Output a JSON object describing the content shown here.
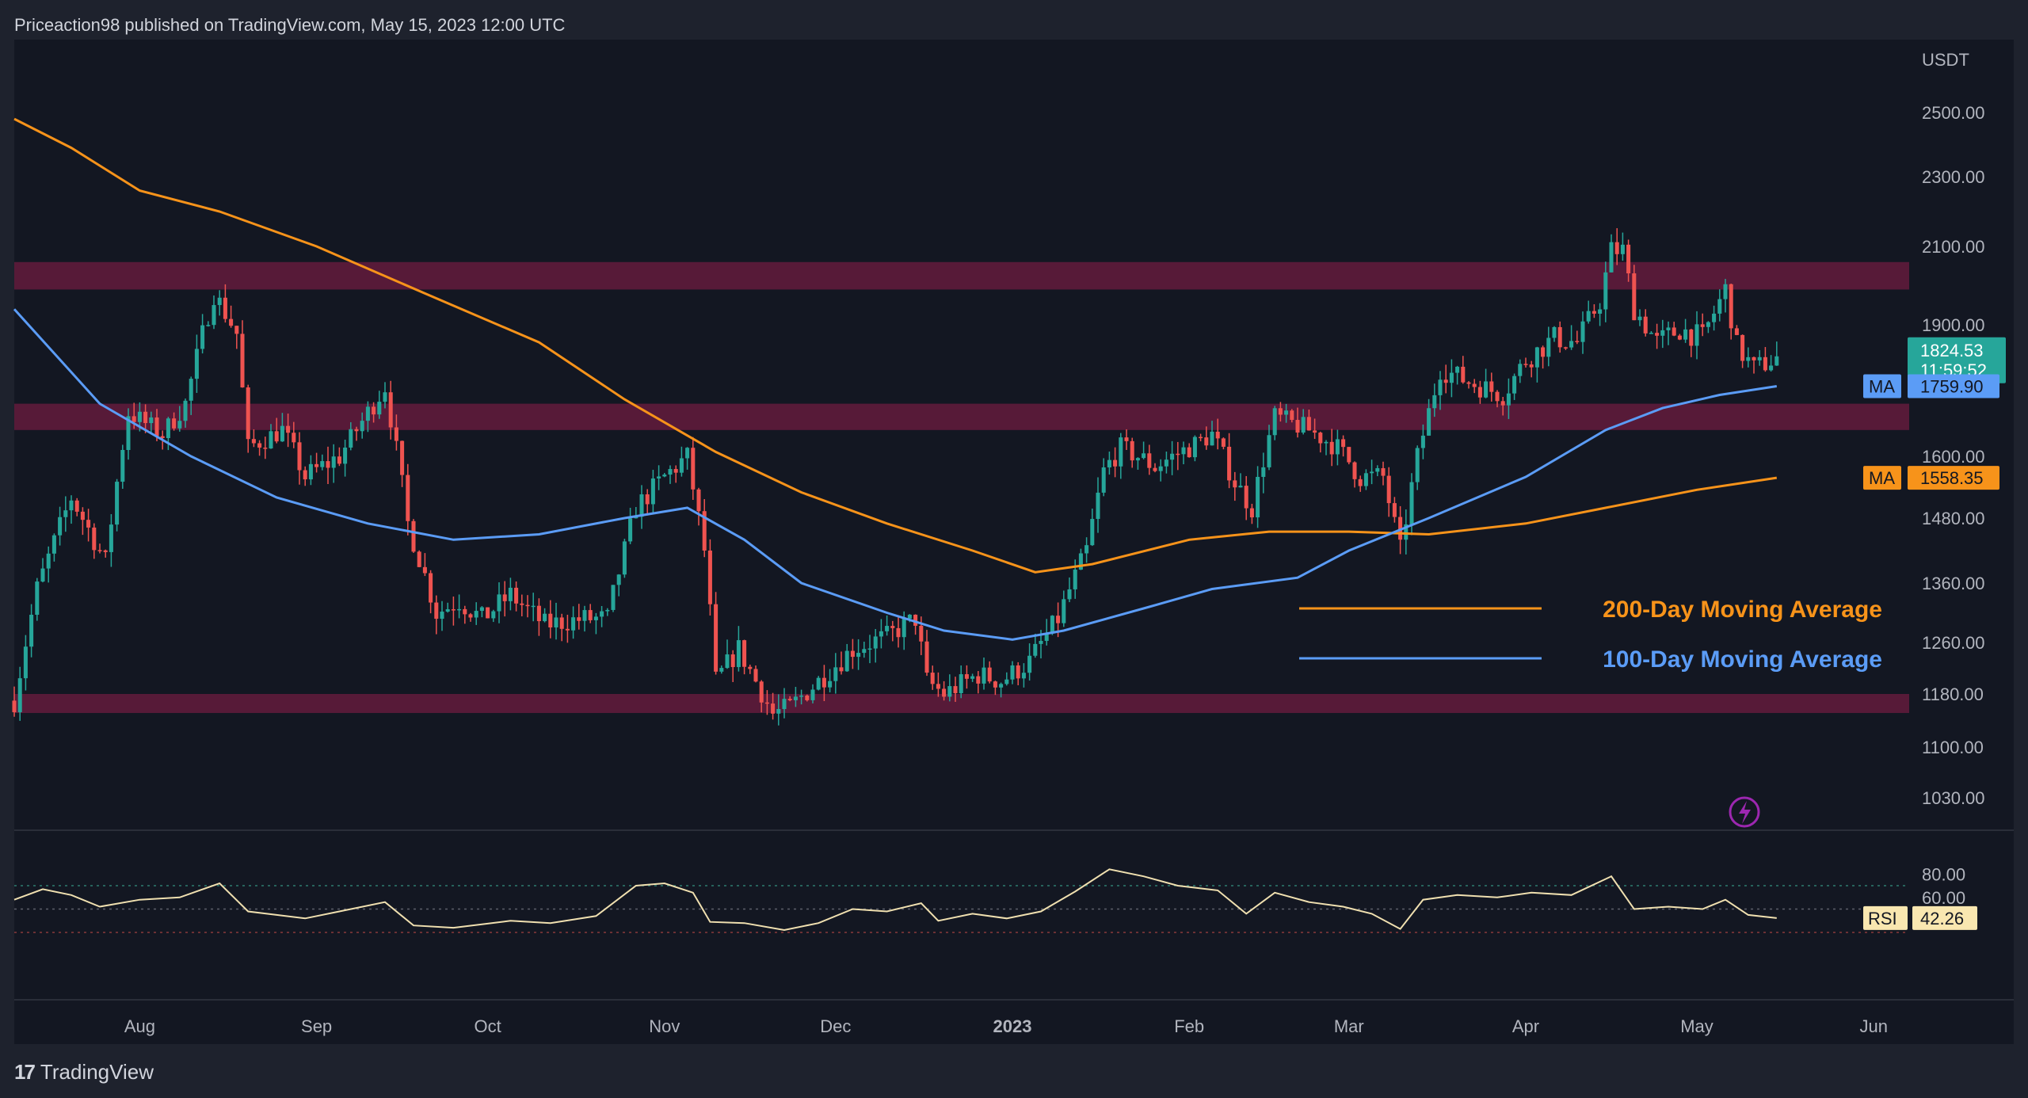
{
  "header": {
    "published_text": "Priceaction98 published on TradingView.com, May 15, 2023 12:00 UTC"
  },
  "footer": {
    "brand": "TradingView"
  },
  "colors": {
    "background": "#131722",
    "frame": "#1e222d",
    "up_candle": "#26a69a",
    "down_candle": "#ef5350",
    "ma100": "#5b9cf6",
    "ma200": "#f7931a",
    "zone": "#5b1a3a",
    "rsi_line": "#f0e0b0",
    "rsi_tag_bg": "#f9e7b0"
  },
  "chart_data": {
    "type": "candlestick",
    "price_unit": "USDT",
    "y_ticks": [
      "2500.00",
      "2300.00",
      "2100.00",
      "1900.00",
      "1600.00",
      "1480.00",
      "1360.00",
      "1260.00",
      "1180.00",
      "1100.00",
      "1030.00"
    ],
    "y_tick_values": [
      2500,
      2300,
      2100,
      1900,
      1600,
      1480,
      1360,
      1260,
      1180,
      1100,
      1030
    ],
    "x_ticks": [
      {
        "label": "Aug",
        "date": "2022-08-01",
        "bold": false
      },
      {
        "label": "Sep",
        "date": "2022-09-01",
        "bold": false
      },
      {
        "label": "Oct",
        "date": "2022-10-01",
        "bold": false
      },
      {
        "label": "Nov",
        "date": "2022-11-01",
        "bold": false
      },
      {
        "label": "Dec",
        "date": "2022-12-01",
        "bold": false
      },
      {
        "label": "2023",
        "date": "2023-01-01",
        "bold": true
      },
      {
        "label": "Feb",
        "date": "2023-02-01",
        "bold": false
      },
      {
        "label": "Mar",
        "date": "2023-03-01",
        "bold": false
      },
      {
        "label": "Apr",
        "date": "2023-04-01",
        "bold": false
      },
      {
        "label": "May",
        "date": "2023-05-01",
        "bold": false
      },
      {
        "label": "Jun",
        "date": "2023-06-01",
        "bold": false
      }
    ],
    "x_range": [
      "2022-07-10",
      "2023-06-10"
    ],
    "zones": [
      {
        "low": 1990,
        "high": 2060
      },
      {
        "low": 1660,
        "high": 1720
      },
      {
        "low": 1160,
        "high": 1180
      }
    ],
    "price_path": [
      [
        "2022-07-10",
        1170
      ],
      [
        "2022-07-14",
        1350
      ],
      [
        "2022-07-20",
        1520
      ],
      [
        "2022-07-26",
        1400
      ],
      [
        "2022-07-30",
        1700
      ],
      [
        "2022-08-05",
        1650
      ],
      [
        "2022-08-09",
        1720
      ],
      [
        "2022-08-14",
        1980
      ],
      [
        "2022-08-18",
        1880
      ],
      [
        "2022-08-20",
        1620
      ],
      [
        "2022-08-26",
        1660
      ],
      [
        "2022-08-30",
        1560
      ],
      [
        "2022-09-05",
        1600
      ],
      [
        "2022-09-10",
        1700
      ],
      [
        "2022-09-13",
        1760
      ],
      [
        "2022-09-17",
        1470
      ],
      [
        "2022-09-22",
        1310
      ],
      [
        "2022-09-26",
        1330
      ],
      [
        "2022-09-30",
        1300
      ],
      [
        "2022-10-05",
        1340
      ],
      [
        "2022-10-11",
        1290
      ],
      [
        "2022-10-18",
        1300
      ],
      [
        "2022-10-22",
        1300
      ],
      [
        "2022-10-27",
        1500
      ],
      [
        "2022-11-01",
        1560
      ],
      [
        "2022-11-05",
        1600
      ],
      [
        "2022-11-08",
        1420
      ],
      [
        "2022-11-10",
        1200
      ],
      [
        "2022-11-14",
        1250
      ],
      [
        "2022-11-20",
        1150
      ],
      [
        "2022-11-23",
        1160
      ],
      [
        "2022-11-28",
        1200
      ],
      [
        "2022-12-04",
        1250
      ],
      [
        "2022-12-10",
        1270
      ],
      [
        "2022-12-15",
        1300
      ],
      [
        "2022-12-17",
        1200
      ],
      [
        "2022-12-20",
        1180
      ],
      [
        "2022-12-26",
        1210
      ],
      [
        "2022-12-30",
        1200
      ],
      [
        "2023-01-04",
        1230
      ],
      [
        "2023-01-09",
        1300
      ],
      [
        "2023-01-14",
        1420
      ],
      [
        "2023-01-17",
        1570
      ],
      [
        "2023-01-20",
        1620
      ],
      [
        "2023-01-26",
        1580
      ],
      [
        "2023-02-01",
        1620
      ],
      [
        "2023-02-05",
        1650
      ],
      [
        "2023-02-09",
        1550
      ],
      [
        "2023-02-12",
        1500
      ],
      [
        "2023-02-16",
        1690
      ],
      [
        "2023-02-22",
        1660
      ],
      [
        "2023-02-27",
        1620
      ],
      [
        "2023-03-03",
        1560
      ],
      [
        "2023-03-07",
        1560
      ],
      [
        "2023-03-10",
        1420
      ],
      [
        "2023-03-13",
        1600
      ],
      [
        "2023-03-17",
        1800
      ],
      [
        "2023-03-22",
        1770
      ],
      [
        "2023-03-28",
        1740
      ],
      [
        "2023-04-01",
        1820
      ],
      [
        "2023-04-06",
        1870
      ],
      [
        "2023-04-10",
        1860
      ],
      [
        "2023-04-14",
        1960
      ],
      [
        "2023-04-16",
        2090
      ],
      [
        "2023-04-18",
        2090
      ],
      [
        "2023-04-20",
        1940
      ],
      [
        "2023-04-24",
        1860
      ],
      [
        "2023-04-28",
        1890
      ],
      [
        "2023-05-02",
        1870
      ],
      [
        "2023-05-06",
        1990
      ],
      [
        "2023-05-08",
        1850
      ],
      [
        "2023-05-11",
        1800
      ],
      [
        "2023-05-15",
        1824.53
      ]
    ],
    "ma100_path": [
      [
        "2022-07-10",
        1940
      ],
      [
        "2022-07-25",
        1720
      ],
      [
        "2022-08-10",
        1600
      ],
      [
        "2022-08-25",
        1520
      ],
      [
        "2022-09-10",
        1470
      ],
      [
        "2022-09-25",
        1440
      ],
      [
        "2022-10-10",
        1450
      ],
      [
        "2022-10-25",
        1480
      ],
      [
        "2022-11-05",
        1500
      ],
      [
        "2022-11-15",
        1440
      ],
      [
        "2022-11-25",
        1360
      ],
      [
        "2022-12-10",
        1310
      ],
      [
        "2022-12-20",
        1280
      ],
      [
        "2023-01-01",
        1265
      ],
      [
        "2023-01-10",
        1280
      ],
      [
        "2023-01-25",
        1320
      ],
      [
        "2023-02-05",
        1350
      ],
      [
        "2023-02-20",
        1370
      ],
      [
        "2023-03-01",
        1420
      ],
      [
        "2023-03-15",
        1480
      ],
      [
        "2023-04-01",
        1560
      ],
      [
        "2023-04-15",
        1660
      ],
      [
        "2023-04-25",
        1710
      ],
      [
        "2023-05-05",
        1740
      ],
      [
        "2023-05-15",
        1759.9
      ]
    ],
    "ma200_path": [
      [
        "2022-07-10",
        2480
      ],
      [
        "2022-07-20",
        2390
      ],
      [
        "2022-08-01",
        2260
      ],
      [
        "2022-08-15",
        2200
      ],
      [
        "2022-09-01",
        2100
      ],
      [
        "2022-09-20",
        1980
      ],
      [
        "2022-10-10",
        1860
      ],
      [
        "2022-10-25",
        1730
      ],
      [
        "2022-11-10",
        1610
      ],
      [
        "2022-11-25",
        1530
      ],
      [
        "2022-12-10",
        1470
      ],
      [
        "2022-12-25",
        1420
      ],
      [
        "2023-01-05",
        1380
      ],
      [
        "2023-01-15",
        1395
      ],
      [
        "2023-02-01",
        1440
      ],
      [
        "2023-02-15",
        1455
      ],
      [
        "2023-03-01",
        1455
      ],
      [
        "2023-03-15",
        1450
      ],
      [
        "2023-04-01",
        1470
      ],
      [
        "2023-04-15",
        1500
      ],
      [
        "2023-05-01",
        1535
      ],
      [
        "2023-05-15",
        1558.35
      ]
    ],
    "legend": [
      {
        "label": "200-Day Moving Average",
        "color": "#f7931a"
      },
      {
        "label": "100-Day Moving Average",
        "color": "#5b9cf6"
      }
    ],
    "price_tags": {
      "last_price": "1824.53",
      "countdown": "11:59:52",
      "ma100_label": "MA",
      "ma100_value": "1759.90",
      "ma200_label": "MA",
      "ma200_value": "1558.35"
    },
    "rsi": {
      "label": "RSI",
      "value": "42.26",
      "y_ticks": [
        "80.00",
        "60.00"
      ],
      "y_tick_values": [
        80,
        60
      ],
      "levels": [
        70,
        50,
        30
      ],
      "path": [
        [
          "2022-07-10",
          58
        ],
        [
          "2022-07-15",
          67
        ],
        [
          "2022-07-20",
          62
        ],
        [
          "2022-07-25",
          52
        ],
        [
          "2022-08-01",
          58
        ],
        [
          "2022-08-08",
          60
        ],
        [
          "2022-08-15",
          72
        ],
        [
          "2022-08-20",
          48
        ],
        [
          "2022-08-25",
          45
        ],
        [
          "2022-08-30",
          42
        ],
        [
          "2022-09-05",
          48
        ],
        [
          "2022-09-13",
          56
        ],
        [
          "2022-09-18",
          36
        ],
        [
          "2022-09-25",
          34
        ],
        [
          "2022-09-30",
          37
        ],
        [
          "2022-10-05",
          40
        ],
        [
          "2022-10-12",
          38
        ],
        [
          "2022-10-20",
          44
        ],
        [
          "2022-10-27",
          70
        ],
        [
          "2022-11-01",
          72
        ],
        [
          "2022-11-06",
          64
        ],
        [
          "2022-11-09",
          39
        ],
        [
          "2022-11-15",
          38
        ],
        [
          "2022-11-22",
          32
        ],
        [
          "2022-11-28",
          38
        ],
        [
          "2022-12-04",
          50
        ],
        [
          "2022-12-10",
          48
        ],
        [
          "2022-12-16",
          55
        ],
        [
          "2022-12-19",
          40
        ],
        [
          "2022-12-25",
          46
        ],
        [
          "2022-12-31",
          42
        ],
        [
          "2023-01-06",
          48
        ],
        [
          "2023-01-12",
          65
        ],
        [
          "2023-01-18",
          84
        ],
        [
          "2023-01-24",
          78
        ],
        [
          "2023-01-30",
          70
        ],
        [
          "2023-02-06",
          66
        ],
        [
          "2023-02-11",
          46
        ],
        [
          "2023-02-16",
          64
        ],
        [
          "2023-02-22",
          56
        ],
        [
          "2023-02-28",
          52
        ],
        [
          "2023-03-05",
          46
        ],
        [
          "2023-03-10",
          33
        ],
        [
          "2023-03-14",
          58
        ],
        [
          "2023-03-20",
          62
        ],
        [
          "2023-03-27",
          60
        ],
        [
          "2023-04-02",
          64
        ],
        [
          "2023-04-09",
          62
        ],
        [
          "2023-04-16",
          78
        ],
        [
          "2023-04-20",
          50
        ],
        [
          "2023-04-26",
          52
        ],
        [
          "2023-05-02",
          50
        ],
        [
          "2023-05-06",
          58
        ],
        [
          "2023-05-10",
          45
        ],
        [
          "2023-05-15",
          42.26
        ]
      ]
    }
  }
}
